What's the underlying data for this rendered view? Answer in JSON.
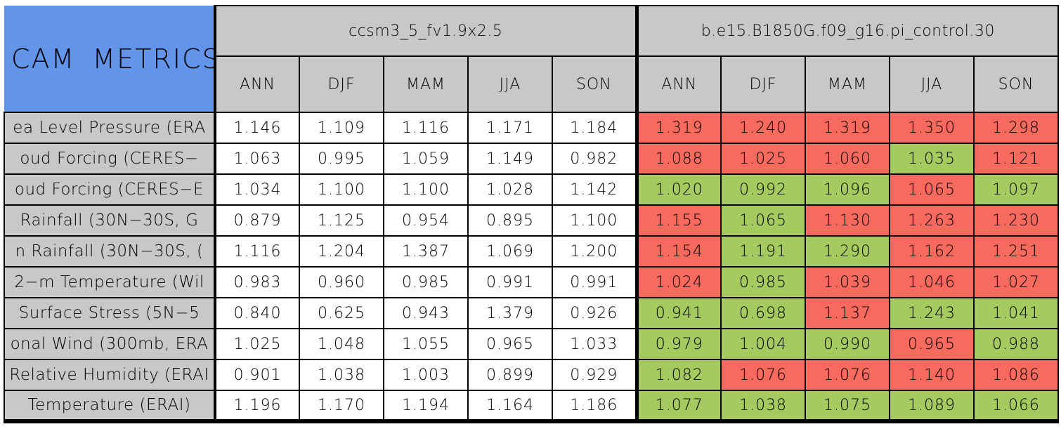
{
  "colors": {
    "header_blue": "#6295EA",
    "header_gray": "#C8C8C8",
    "cell_white": "#FFFFFF",
    "cell_red": "#F8695E",
    "cell_green": "#A5CB60",
    "border_black": "#000000"
  },
  "chart_data": {
    "type": "table",
    "title": "CAM METRICS",
    "column_groups": [
      "ccsm3_5_fv1.9x2.5",
      "b.e15.B1850G.f09_g16.pi_control.30"
    ],
    "season_columns": [
      "ANN",
      "DJF",
      "MAM",
      "JJA",
      "SON"
    ],
    "rows": [
      {
        "label": "ea Level Pressure (ERA",
        "model1": [
          "1.146",
          "1.109",
          "1.116",
          "1.171",
          "1.184"
        ],
        "model2": [
          "1.319",
          "1.240",
          "1.319",
          "1.350",
          "1.298"
        ],
        "model2_colors": [
          "red",
          "red",
          "red",
          "red",
          "red"
        ]
      },
      {
        "label": "oud Forcing (CERES−",
        "model1": [
          "1.063",
          "0.995",
          "1.059",
          "1.149",
          "0.982"
        ],
        "model2": [
          "1.088",
          "1.025",
          "1.060",
          "1.035",
          "1.121"
        ],
        "model2_colors": [
          "red",
          "red",
          "red",
          "green",
          "red"
        ]
      },
      {
        "label": "oud Forcing (CERES−E",
        "model1": [
          "1.034",
          "1.100",
          "1.100",
          "1.028",
          "1.142"
        ],
        "model2": [
          "1.020",
          "0.992",
          "1.096",
          "1.065",
          "1.097"
        ],
        "model2_colors": [
          "green",
          "green",
          "green",
          "red",
          "green"
        ]
      },
      {
        "label": "Rainfall (30N−30S, G",
        "model1": [
          "0.879",
          "1.125",
          "0.954",
          "0.895",
          "1.100"
        ],
        "model2": [
          "1.155",
          "1.065",
          "1.130",
          "1.263",
          "1.230"
        ],
        "model2_colors": [
          "red",
          "green",
          "red",
          "red",
          "red"
        ]
      },
      {
        "label": "n Rainfall (30N−30S, (",
        "model1": [
          "1.116",
          "1.204",
          "1.387",
          "1.069",
          "1.200"
        ],
        "model2": [
          "1.154",
          "1.191",
          "1.290",
          "1.162",
          "1.251"
        ],
        "model2_colors": [
          "red",
          "green",
          "green",
          "red",
          "red"
        ]
      },
      {
        "label": "2−m Temperature (Wil",
        "model1": [
          "0.983",
          "0.960",
          "0.985",
          "0.991",
          "0.991"
        ],
        "model2": [
          "1.024",
          "0.985",
          "1.039",
          "1.046",
          "1.027"
        ],
        "model2_colors": [
          "red",
          "green",
          "red",
          "red",
          "red"
        ]
      },
      {
        "label": "Surface Stress (5N−5",
        "model1": [
          "0.840",
          "0.625",
          "0.943",
          "1.379",
          "0.926"
        ],
        "model2": [
          "0.941",
          "0.698",
          "1.137",
          "1.243",
          "1.041"
        ],
        "model2_colors": [
          "green",
          "green",
          "red",
          "green",
          "green"
        ]
      },
      {
        "label": "onal Wind (300mb, ERA",
        "model1": [
          "1.025",
          "1.048",
          "1.055",
          "0.965",
          "1.033"
        ],
        "model2": [
          "0.979",
          "1.004",
          "0.990",
          "0.965",
          "0.988"
        ],
        "model2_colors": [
          "green",
          "green",
          "green",
          "red",
          "green"
        ]
      },
      {
        "label": "Relative Humidity (ERAI",
        "model1": [
          "0.901",
          "1.038",
          "1.003",
          "0.899",
          "0.929"
        ],
        "model2": [
          "1.082",
          "1.076",
          "1.076",
          "1.140",
          "1.086"
        ],
        "model2_colors": [
          "green",
          "red",
          "red",
          "red",
          "red"
        ]
      },
      {
        "label": "Temperature (ERAI)",
        "model1": [
          "1.196",
          "1.170",
          "1.194",
          "1.164",
          "1.186"
        ],
        "model2": [
          "1.077",
          "1.038",
          "1.075",
          "1.089",
          "1.066"
        ],
        "model2_colors": [
          "green",
          "green",
          "green",
          "green",
          "green"
        ]
      }
    ]
  }
}
